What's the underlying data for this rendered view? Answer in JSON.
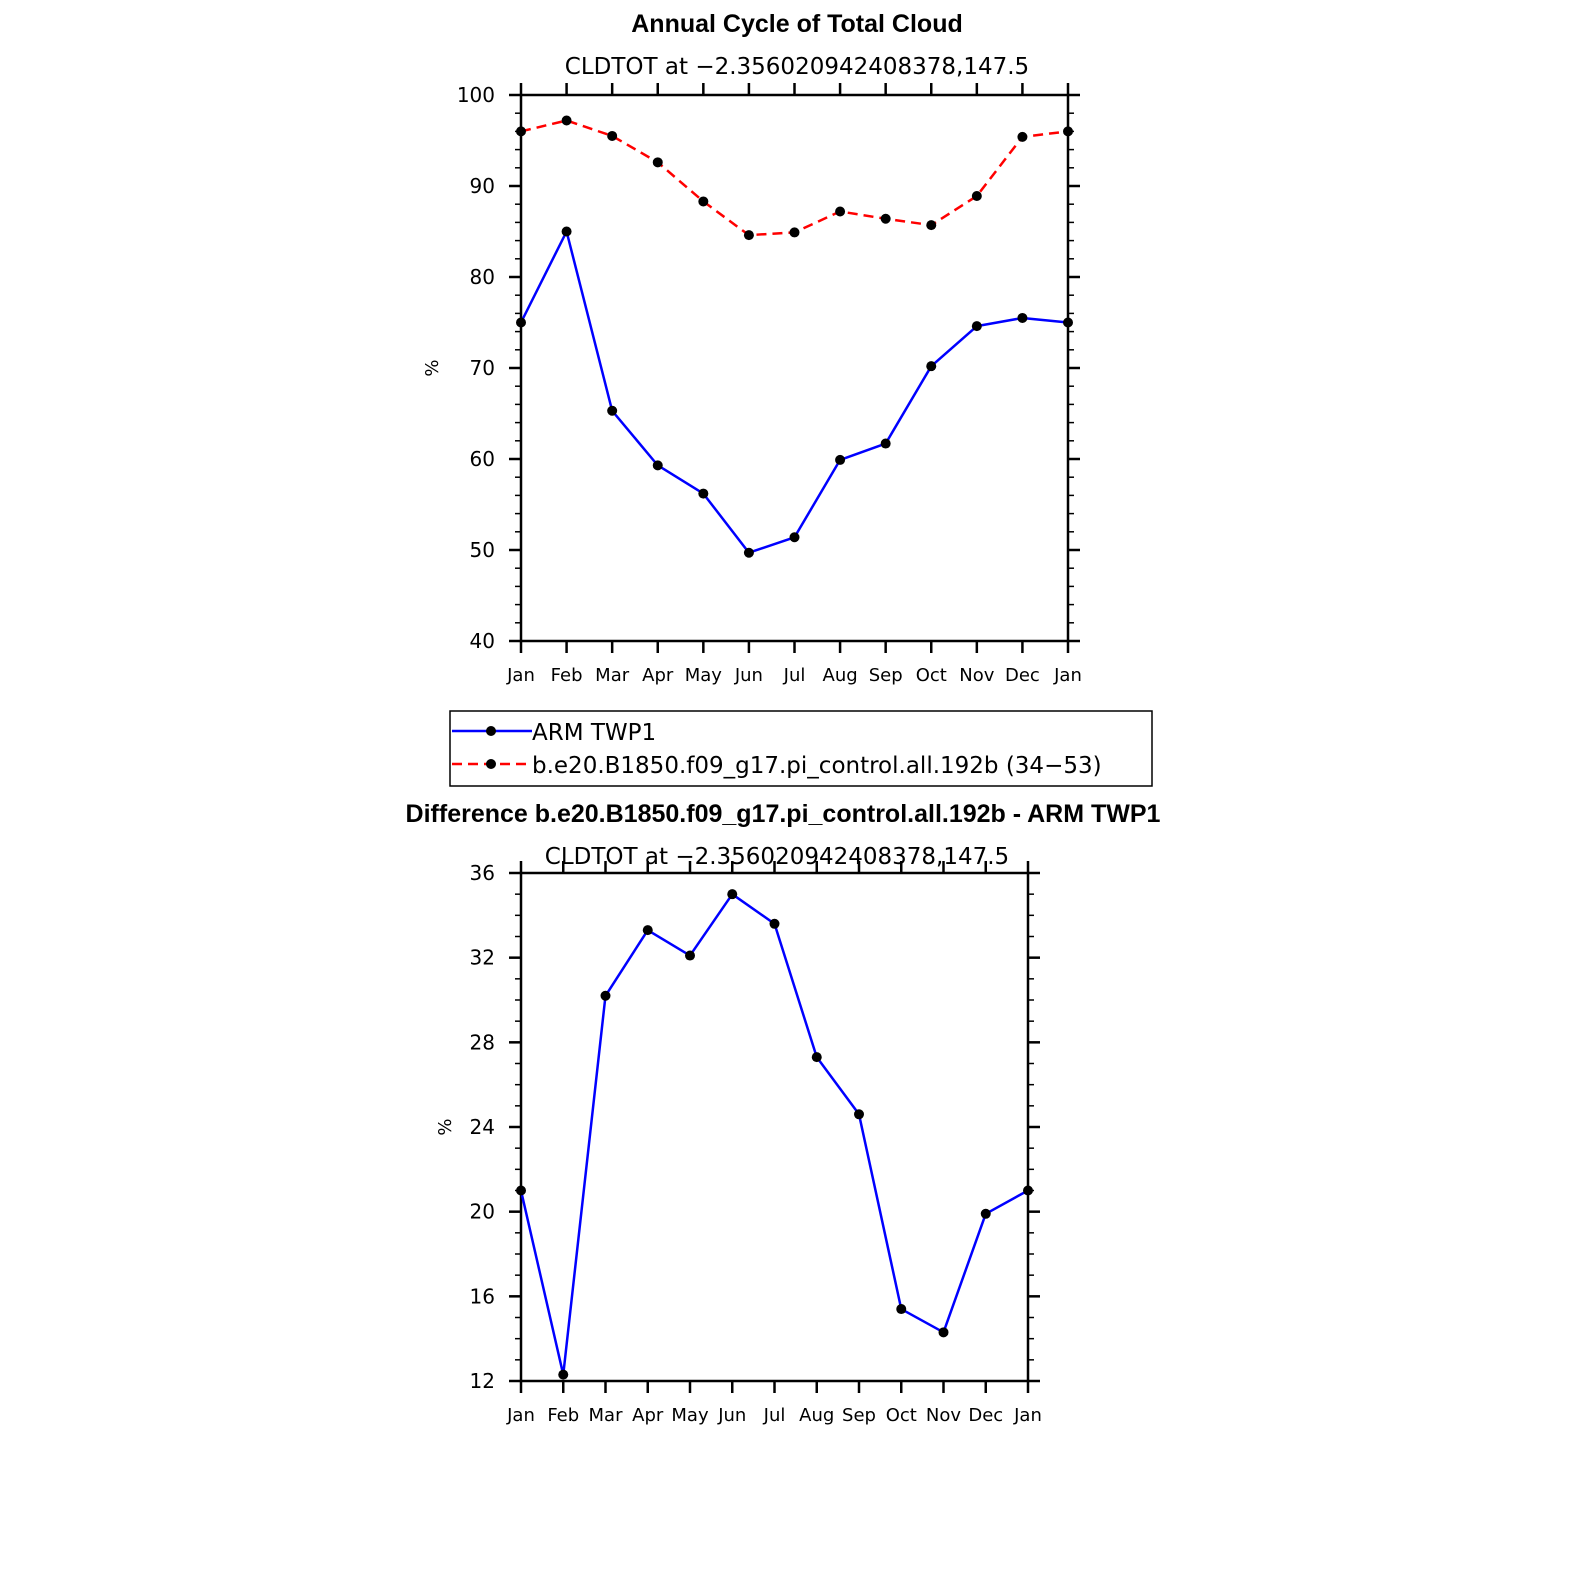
{
  "colors": {
    "arm": "#0000ff",
    "model": "#ff0000",
    "marker": "#000000"
  },
  "chart_data": [
    {
      "type": "line",
      "title": "Annual Cycle of Total Cloud",
      "subtitle": "CLDTOT at −2.356020942408378,147.5",
      "ylabel": "%",
      "xlabel": "",
      "categories": [
        "Jan",
        "Feb",
        "Mar",
        "Apr",
        "May",
        "Jun",
        "Jul",
        "Aug",
        "Sep",
        "Oct",
        "Nov",
        "Dec",
        "Jan"
      ],
      "ylim": [
        40,
        100
      ],
      "yticks": [
        40,
        50,
        60,
        70,
        80,
        90,
        100
      ],
      "series": [
        {
          "name": "ARM TWP1",
          "color": "#0000ff",
          "style": "solid",
          "values": [
            75.0,
            85.0,
            65.3,
            59.3,
            56.2,
            49.7,
            51.4,
            59.9,
            61.7,
            70.2,
            74.6,
            75.5,
            75.0
          ]
        },
        {
          "name": "b.e20.B1850.f09_g17.pi_control.all.192b (34−53)",
          "color": "#ff0000",
          "style": "dashed",
          "values": [
            96.0,
            97.2,
            95.5,
            92.6,
            88.3,
            84.6,
            84.9,
            87.2,
            86.4,
            85.7,
            88.9,
            95.4,
            96.0
          ]
        }
      ],
      "legend": "bottom",
      "grid": false
    },
    {
      "type": "line",
      "title": "Difference b.e20.B1850.f09_g17.pi_control.all.192b - ARM TWP1",
      "subtitle": "CLDTOT at −2.356020942408378,147.5",
      "ylabel": "%",
      "xlabel": "",
      "categories": [
        "Jan",
        "Feb",
        "Mar",
        "Apr",
        "May",
        "Jun",
        "Jul",
        "Aug",
        "Sep",
        "Oct",
        "Nov",
        "Dec",
        "Jan"
      ],
      "ylim": [
        12,
        36
      ],
      "yticks": [
        12,
        16,
        20,
        24,
        28,
        32,
        36
      ],
      "series": [
        {
          "color": "#0000ff",
          "style": "solid",
          "values": [
            21.0,
            12.3,
            30.2,
            33.3,
            32.1,
            35.0,
            33.6,
            27.3,
            24.6,
            15.4,
            14.3,
            19.9,
            21.0
          ]
        }
      ],
      "grid": false
    }
  ]
}
